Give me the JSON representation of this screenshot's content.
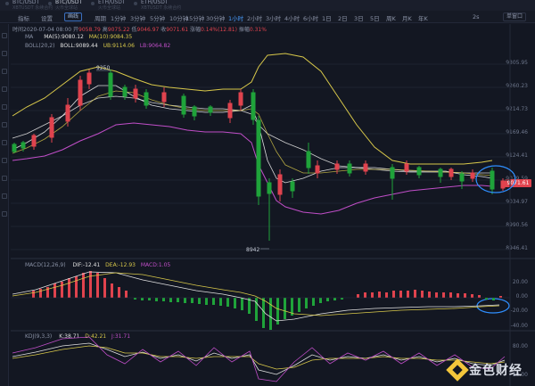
{
  "tabs": [
    {
      "name": "BTC/USDT",
      "sub": "XBTUSDT 永续合约",
      "active": false
    },
    {
      "name": "BTC/USDT",
      "sub": "火币全球站",
      "active": true
    },
    {
      "name": "ETH/USDT",
      "sub": "火币全球站",
      "active": false
    },
    {
      "name": "ETH/USDT",
      "sub": "XBTUSDT 永续合约",
      "active": false
    }
  ],
  "toolbar": {
    "left": [
      "指标",
      "设置",
      "画线"
    ],
    "intervals": [
      "周期",
      "1分钟",
      "3分钟",
      "5分钟",
      "10分钟",
      "15分钟",
      "30分钟",
      "1小时",
      "2小时",
      "3小时",
      "4小时",
      "6小时",
      "1日",
      "2日",
      "3日",
      "5日",
      "周K",
      "月K",
      "年K"
    ],
    "active_interval": "1小时",
    "right_zoom": "2s",
    "right_select": "单窗口"
  },
  "ohlc": {
    "time_label": "时间",
    "time": "2020-07-04 08:00",
    "open_label": "开",
    "open": "9058.79",
    "high_label": "高",
    "high": "9075.22",
    "low_label": "低",
    "low": "9046.97",
    "close_label": "收",
    "close": "9071.61",
    "change_label": "涨幅",
    "change": "0.14%(12.81)",
    "amp_label": "振幅",
    "amp": "0.31%"
  },
  "main_legend": {
    "ma": {
      "name": "MA",
      "ma5_label": "MA(5):",
      "ma5": "9080.12",
      "ma10_label": "MA(10):",
      "ma10": "9084.35"
    },
    "boll": {
      "name": "BOLL(20,2)",
      "mid_label": "BOLL:",
      "mid": "9089.44",
      "ub_label": "UB:",
      "ub": "9114.06",
      "lb_label": "LB:",
      "lb": "9064.82"
    }
  },
  "price_axis": [
    "9305.95",
    "9260.23",
    "9214.73",
    "9169.46",
    "9124.41",
    "9079.59",
    "9034.97",
    "8990.56",
    "8946.41"
  ],
  "current_price": "9071.61",
  "annotations": {
    "high": "9250",
    "low": "8942"
  },
  "macd_legend": {
    "name": "MACD(12,26,9)",
    "dif_label": "DIF:",
    "dif": "-12.41",
    "dea_label": "DEA:",
    "dea": "-12.93",
    "macd_label": "MACD:",
    "macd": "1.05"
  },
  "macd_axis": [
    "20.00",
    "0.00",
    "-20.00",
    "-40.00"
  ],
  "kdj_legend": {
    "name": "KDJ(9,3,3)",
    "k_label": "K:",
    "k": "38.71",
    "d_label": "D:",
    "d": "42.21",
    "j_label": "J:",
    "j": "31.71"
  },
  "kdj_axis": [
    "80.00",
    "20.00"
  ],
  "watermark": "金色财经",
  "colors": {
    "up": "#e0434e",
    "down": "#1fa33a",
    "ma5": "#e0e0e0",
    "ma10": "#d8c84a",
    "boll_upper": "#d8c84a",
    "boll_lower": "#c04ec8",
    "highlight": "#2f8fff"
  }
}
